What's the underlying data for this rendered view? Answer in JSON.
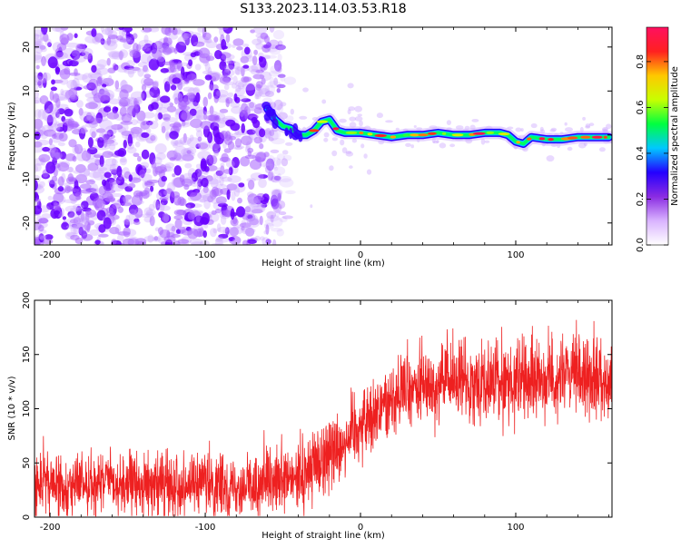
{
  "title": "S133.2023.114.03.53.R18",
  "chart_data": [
    {
      "type": "heatmap",
      "xlabel": "Height of straight line (km)",
      "ylabel": "Frequency (Hz)",
      "xlim": [
        -210,
        162
      ],
      "ylim": [
        -25,
        24.5
      ],
      "xticks": [
        -200,
        -100,
        0,
        100
      ],
      "xtick_labels": [
        "-200",
        "-100",
        "0",
        "100"
      ],
      "yticks": [
        -20,
        -10,
        0,
        10,
        20
      ],
      "ytick_labels": [
        "-20",
        "-10",
        "0",
        "10",
        "20"
      ],
      "colorbar": {
        "label": "Normalized spectral amplitude",
        "range": [
          0,
          0.95
        ],
        "ticks": [
          0.0,
          0.2,
          0.4,
          0.6,
          0.8
        ],
        "tick_labels": [
          "0.0",
          "0.2",
          "0.4",
          "0.6",
          "0.8"
        ],
        "colors": [
          "#ffffff",
          "#d9b3ff",
          "#8a2be2",
          "#2400ff",
          "#00c8ff",
          "#00ff40",
          "#c8ff00",
          "#ffc800",
          "#ff2020",
          "#ff1060"
        ]
      },
      "ridge": {
        "x": [
          -60,
          -55,
          -50,
          -45,
          -40,
          -35,
          -30,
          -25,
          -20,
          -15,
          -10,
          -5,
          0,
          10,
          20,
          30,
          40,
          50,
          60,
          70,
          80,
          90,
          95,
          100,
          105,
          110,
          120,
          130,
          140,
          150,
          160
        ],
        "y": [
          6,
          3.5,
          2,
          1.5,
          0,
          0,
          1,
          3,
          3.5,
          1,
          0.5,
          0.5,
          0.5,
          0,
          -0.5,
          0,
          0,
          0.5,
          0,
          0,
          0.5,
          0.5,
          0,
          -1.5,
          -2,
          -0.5,
          -1,
          -1,
          -0.5,
          -0.5,
          -0.5
        ]
      },
      "grid": false
    },
    {
      "type": "line",
      "xlabel": "Height of straight line (km)",
      "ylabel": "SNR (10 * v/v)",
      "xlim": [
        -210,
        162
      ],
      "ylim": [
        0,
        200
      ],
      "xticks": [
        -200,
        -100,
        0,
        100
      ],
      "xtick_labels": [
        "-200",
        "-100",
        "0",
        "100"
      ],
      "yticks": [
        0,
        50,
        100,
        150,
        200
      ],
      "ytick_labels": [
        "0",
        "50",
        "100",
        "150",
        "200"
      ],
      "series": [
        {
          "color": "#ee2020",
          "trend": {
            "x": [
              -210,
              -150,
              -100,
              -60,
              -40,
              -20,
              0,
              20,
              40,
              60,
              80,
              100,
              120,
              140,
              162
            ],
            "y": [
              30,
              30,
              30,
              28,
              35,
              60,
              85,
              110,
              120,
              125,
              125,
              125,
              128,
              130,
              128
            ]
          }
        }
      ],
      "grid": false
    }
  ]
}
